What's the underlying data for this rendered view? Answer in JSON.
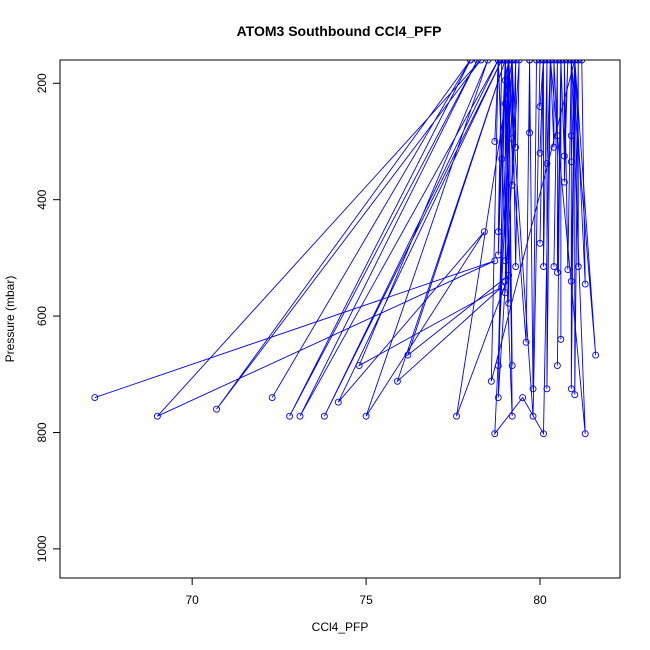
{
  "chart_data": {
    "type": "line",
    "title": "ATOM3 Southbound CCl4_PFP",
    "xlabel": "CCl4_PFP",
    "ylabel": "Pressure (mbar)",
    "xlim": [
      66.2,
      82.3
    ],
    "ylim": [
      1050,
      160
    ],
    "y_reversed": true,
    "x_ticks": [
      70,
      75,
      80
    ],
    "y_ticks": [
      200,
      400,
      600,
      800,
      1000
    ],
    "grid": false,
    "series_color": "#0000ff",
    "series": [
      {
        "values": [
          [
            67.2,
            740
          ],
          [
            78.7,
            505
          ],
          [
            69.0,
            772
          ],
          [
            78.3,
            160
          ],
          [
            70.7,
            760
          ],
          [
            78.0,
            160
          ],
          [
            72.3,
            740
          ],
          [
            78.0,
            160
          ],
          [
            72.8,
            772
          ],
          [
            78.2,
            160
          ],
          [
            73.1,
            772
          ],
          [
            78.8,
            160
          ],
          [
            73.8,
            772
          ],
          [
            78.9,
            160
          ],
          [
            74.2,
            748
          ],
          [
            78.4,
            455
          ],
          [
            75.0,
            772
          ],
          [
            78.5,
            160
          ],
          [
            74.8,
            685
          ],
          [
            78.9,
            550
          ],
          [
            75.9,
            712
          ],
          [
            79.0,
            160
          ],
          [
            76.2,
            667
          ],
          [
            79.1,
            530
          ],
          [
            77.6,
            772
          ],
          [
            79.2,
            160
          ],
          [
            78.7,
            802
          ],
          [
            79.5,
            740
          ],
          [
            80.1,
            802
          ],
          [
            80.3,
            160
          ],
          [
            81.3,
            802
          ],
          [
            80.9,
            160
          ],
          [
            81.6,
            667
          ],
          [
            81.0,
            160
          ],
          [
            78.6,
            712
          ],
          [
            78.8,
            160
          ],
          [
            79.2,
            772
          ],
          [
            79.1,
            160
          ],
          [
            79.8,
            772
          ],
          [
            80.0,
            160
          ]
        ]
      },
      {
        "values": [
          [
            78.7,
            300
          ],
          [
            78.8,
            160
          ],
          [
            78.9,
            330
          ],
          [
            79.0,
            160
          ],
          [
            78.8,
            455
          ],
          [
            78.9,
            160
          ],
          [
            78.8,
            495
          ],
          [
            79.0,
            160
          ],
          [
            79.0,
            505
          ],
          [
            79.1,
            160
          ],
          [
            79.0,
            540
          ],
          [
            79.1,
            160
          ],
          [
            79.0,
            560
          ],
          [
            79.1,
            160
          ],
          [
            79.1,
            578
          ],
          [
            79.0,
            160
          ],
          [
            79.2,
            685
          ],
          [
            79.1,
            160
          ],
          [
            78.8,
            685
          ],
          [
            79.0,
            160
          ],
          [
            79.0,
            195
          ],
          [
            79.1,
            160
          ],
          [
            79.0,
            235
          ],
          [
            79.1,
            160
          ],
          [
            79.2,
            295
          ],
          [
            79.2,
            160
          ],
          [
            79.3,
            310
          ],
          [
            79.3,
            160
          ],
          [
            79.2,
            375
          ],
          [
            79.2,
            160
          ],
          [
            79.3,
            515
          ],
          [
            79.4,
            160
          ],
          [
            78.8,
            740
          ],
          [
            79.0,
            160
          ],
          [
            79.6,
            645
          ],
          [
            79.7,
            160
          ],
          [
            79.7,
            285
          ],
          [
            79.7,
            160
          ],
          [
            79.8,
            725
          ],
          [
            79.9,
            160
          ]
        ]
      },
      {
        "values": [
          [
            80.0,
            240
          ],
          [
            80.1,
            160
          ],
          [
            80.0,
            320
          ],
          [
            80.1,
            160
          ],
          [
            80.0,
            475
          ],
          [
            80.1,
            160
          ],
          [
            80.1,
            515
          ],
          [
            80.2,
            160
          ],
          [
            80.2,
            725
          ],
          [
            80.3,
            160
          ],
          [
            80.2,
            338
          ],
          [
            80.3,
            160
          ],
          [
            80.4,
            310
          ],
          [
            80.4,
            160
          ],
          [
            80.5,
            290
          ],
          [
            80.5,
            160
          ],
          [
            80.4,
            515
          ],
          [
            80.5,
            160
          ],
          [
            80.5,
            525
          ],
          [
            80.6,
            160
          ],
          [
            80.6,
            640
          ],
          [
            80.6,
            160
          ],
          [
            80.5,
            685
          ],
          [
            80.6,
            160
          ],
          [
            80.7,
            325
          ],
          [
            80.8,
            160
          ],
          [
            80.7,
            370
          ],
          [
            80.7,
            160
          ],
          [
            80.8,
            520
          ],
          [
            80.9,
            160
          ],
          [
            80.9,
            290
          ],
          [
            80.9,
            160
          ],
          [
            80.9,
            335
          ],
          [
            81.0,
            160
          ],
          [
            80.9,
            540
          ],
          [
            80.9,
            160
          ],
          [
            80.9,
            725
          ],
          [
            81.0,
            160
          ],
          [
            81.0,
            735
          ],
          [
            81.1,
            160
          ],
          [
            81.1,
            515
          ],
          [
            81.0,
            160
          ],
          [
            81.3,
            545
          ],
          [
            81.2,
            160
          ]
        ]
      }
    ]
  }
}
